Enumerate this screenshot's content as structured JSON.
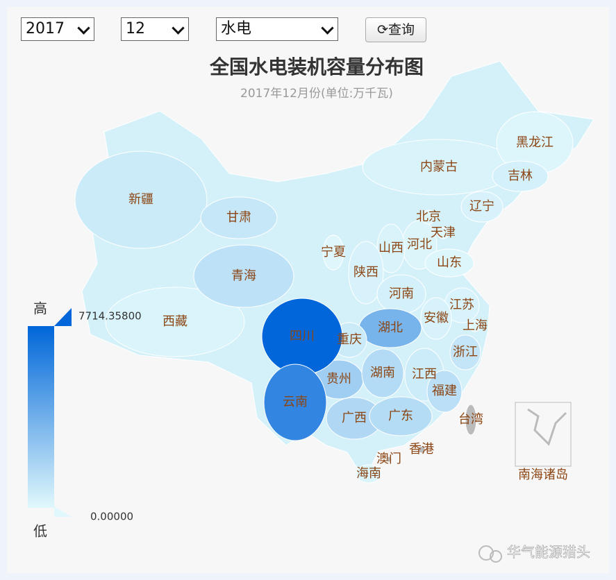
{
  "controls": {
    "year": "2017",
    "month": "12",
    "energy_type": "水电",
    "query": "查询"
  },
  "title": "全国水电装机容量分布图",
  "subtitle": "2017年12月份(单位:万千瓦)",
  "legend": {
    "high_text": "高",
    "low_text": "低",
    "max": {
      "value": 7714.358,
      "label": "7714.35800"
    },
    "min": {
      "value": 0,
      "label": "0.00000"
    },
    "low_color": "#e0f8fc",
    "high_color": "#0066d9"
  },
  "no_data_color": "#bbbbbb",
  "regions": [
    {
      "name": "新疆",
      "value": 700
    },
    {
      "name": "西藏",
      "value": 200
    },
    {
      "name": "内蒙古",
      "value": 250
    },
    {
      "name": "青海",
      "value": 1200
    },
    {
      "name": "甘肃",
      "value": 900
    },
    {
      "name": "黑龙江",
      "value": 100
    },
    {
      "name": "吉林",
      "value": 400
    },
    {
      "name": "辽宁",
      "value": 300
    },
    {
      "name": "河北",
      "value": 180
    },
    {
      "name": "山西",
      "value": 240
    },
    {
      "name": "宁夏",
      "value": 40
    },
    {
      "name": "陕西",
      "value": 300
    },
    {
      "name": "山东",
      "value": 100
    },
    {
      "name": "河南",
      "value": 400
    },
    {
      "name": "江苏",
      "value": 260
    },
    {
      "name": "安徽",
      "value": 300
    },
    {
      "name": "湖北",
      "value": 3600
    },
    {
      "name": "重庆",
      "value": 700
    },
    {
      "name": "浙江",
      "value": 1000
    },
    {
      "name": "贵州",
      "value": 2200
    },
    {
      "name": "湖南",
      "value": 1550
    },
    {
      "name": "江西",
      "value": 650
    },
    {
      "name": "福建",
      "value": 1300
    },
    {
      "name": "广西",
      "value": 1670
    },
    {
      "name": "广东",
      "value": 1500
    },
    {
      "name": "海南",
      "value": 150
    },
    {
      "name": "北京",
      "value": 90
    },
    {
      "name": "天津",
      "value": 10
    },
    {
      "name": "上海",
      "value": 5
    },
    {
      "name": "台湾",
      "value": null
    },
    {
      "name": "香港",
      "value": null
    },
    {
      "name": "澳门",
      "value": null
    },
    {
      "name": "四川",
      "value": 7714.358
    },
    {
      "name": "云南",
      "value": 6000
    }
  ],
  "south_sea_label": "南海诸岛",
  "watermark": "华气能源猎头"
}
